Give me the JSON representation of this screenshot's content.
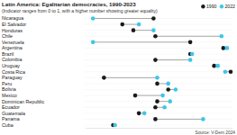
{
  "chart_data": {
    "type": "dot",
    "title": "Latin America: Egalitarian democracies, 1990-2023",
    "subtitle": "(Indicator ranges from 0 to 1, with a higher number showing greater equality)",
    "source": "Source: V-Dem 2024",
    "orientation": "horizontal",
    "legend": "top-right",
    "tick_labels": "y",
    "xlim": [
      0,
      0.8
    ],
    "categories": [
      "Nicaragua",
      "El Salvador",
      "Honduras",
      "Chile",
      "Venezuela",
      "Argentina",
      "Brazil",
      "Colombia",
      "Uruguay",
      "Costa Rica",
      "Paraguay",
      "Peru",
      "Bolivia",
      "Mexico",
      "Dominican Republic",
      "Ecuador",
      "Guatemala",
      "Panama",
      "Cuba"
    ],
    "series": [
      {
        "name": "1990",
        "color": "#1a1a1a",
        "marker": "circle",
        "values": [
          0.37,
          0.2,
          0.26,
          0.38,
          0.57,
          0.75,
          0.57,
          0.38,
          0.7,
          0.79,
          0.1,
          0.39,
          0.45,
          0.27,
          0.39,
          0.38,
          0.29,
          0.38,
          0.15
        ]
      },
      {
        "name": "2022",
        "color": "#3ec6e8",
        "marker": "circle",
        "values": [
          0.04,
          0.29,
          0.37,
          0.74,
          0.04,
          0.77,
          0.58,
          0.57,
          0.72,
          0.76,
          0.39,
          0.45,
          0.49,
          0.42,
          0.46,
          0.43,
          0.32,
          0.64,
          0.16
        ]
      }
    ]
  }
}
